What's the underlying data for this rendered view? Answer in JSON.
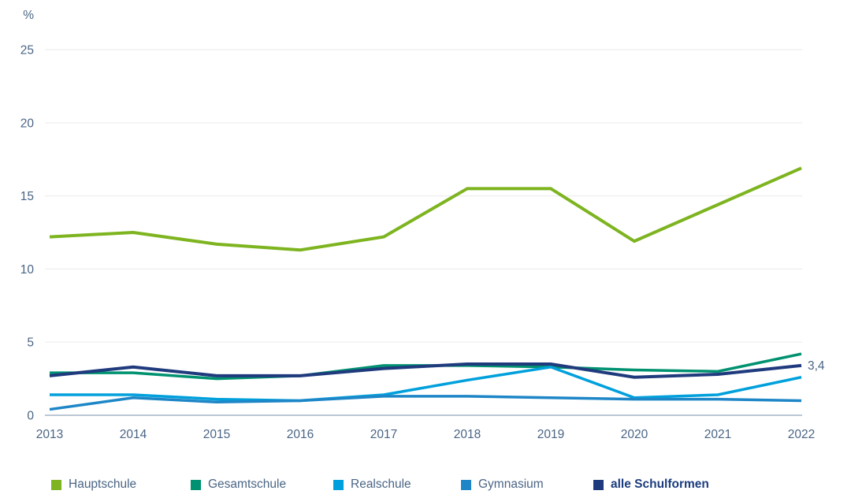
{
  "chart_data": {
    "type": "line",
    "title": "",
    "ylabel": "%",
    "xlabel": "",
    "ylim": [
      0,
      25
    ],
    "yticks": [
      0,
      5,
      10,
      15,
      20,
      25
    ],
    "grid": "horizontal",
    "legend_position": "bottom",
    "x": [
      "2013",
      "2014",
      "2015",
      "2016",
      "2017",
      "2018",
      "2019",
      "2020",
      "2021",
      "2022"
    ],
    "series": [
      {
        "name": "Hauptschule",
        "color": "#7db41f",
        "bold": false,
        "values": [
          12.2,
          12.5,
          11.7,
          11.3,
          12.2,
          15.5,
          15.5,
          11.9,
          14.4,
          16.9
        ]
      },
      {
        "name": "Gesamtschule",
        "color": "#009270",
        "bold": false,
        "values": [
          2.9,
          2.9,
          2.5,
          2.7,
          3.4,
          3.4,
          3.3,
          3.1,
          3.0,
          4.2
        ]
      },
      {
        "name": "Realschule",
        "color": "#00a0dc",
        "bold": false,
        "values": [
          1.4,
          1.4,
          1.1,
          1.0,
          1.4,
          2.4,
          3.3,
          1.2,
          1.4,
          2.6
        ]
      },
      {
        "name": "Gymnasium",
        "color": "#1e86c7",
        "bold": false,
        "values": [
          0.4,
          1.2,
          0.9,
          1.0,
          1.3,
          1.3,
          1.2,
          1.1,
          1.1,
          1.0
        ]
      },
      {
        "name": "alle Schulformen",
        "color": "#1f3a7d",
        "bold": true,
        "values": [
          2.7,
          3.3,
          2.7,
          2.7,
          3.2,
          3.5,
          3.5,
          2.6,
          2.8,
          3.4
        ]
      }
    ],
    "annotation": {
      "text": "3,4",
      "series_index": 4,
      "at_x": "2022"
    }
  },
  "colors": {
    "axis_text": "#4a6585",
    "gridline": "#eeeeee",
    "zero_line": "#a3b6c6",
    "legend_text": "#4a6585",
    "legend_bold_text": "#1b3c7e",
    "background": "#ffffff"
  }
}
